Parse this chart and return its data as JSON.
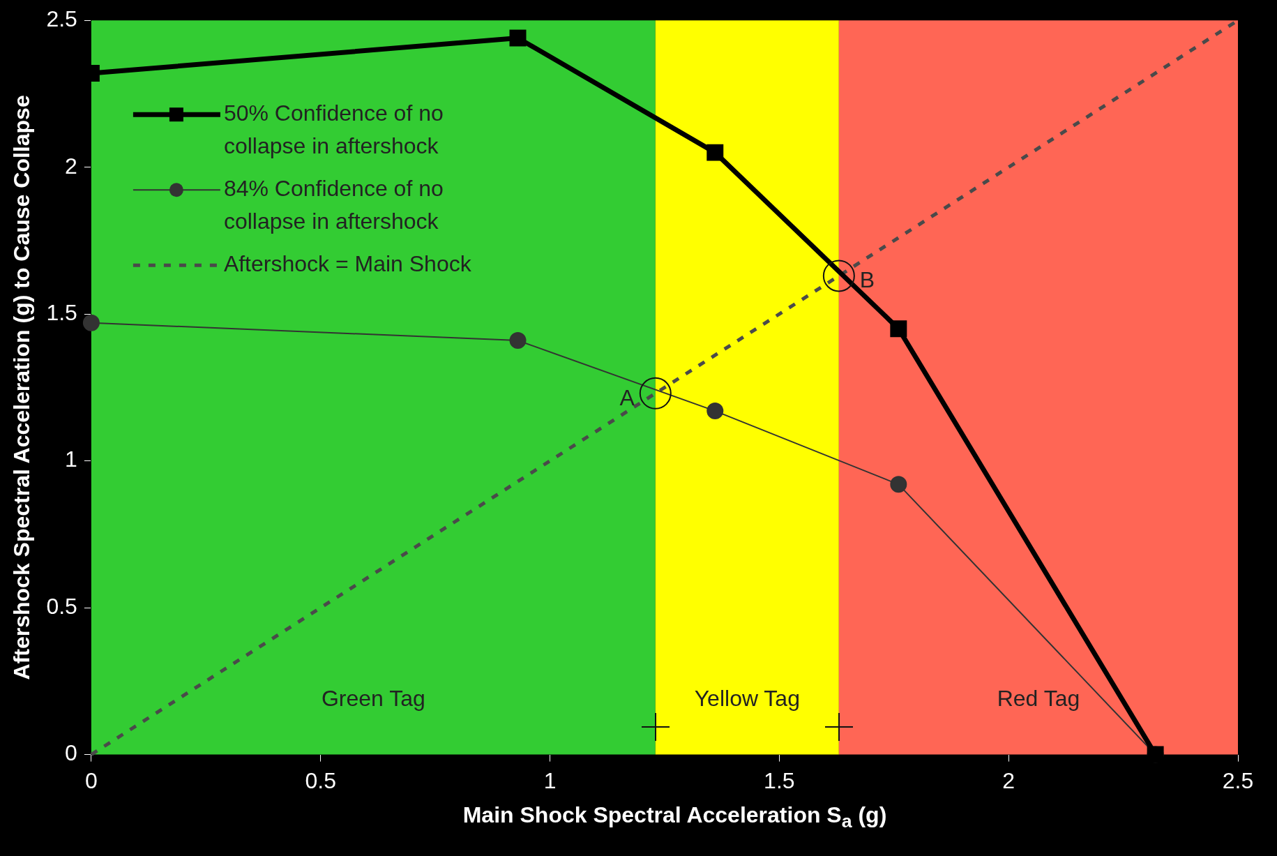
{
  "chart_data": {
    "type": "line",
    "xlabel": "Main Shock Spectral Acceleration S$_{a}$ (g)",
    "ylabel": "Aftershock Spectral Acceleration (g) to Cause Collapse",
    "series": [
      {
        "name": "50% Confidence of no collapse in aftershock",
        "color": "#000000",
        "x": [
          0,
          0.93,
          1.36,
          1.76,
          2.32
        ],
        "values": [
          2.32,
          2.44,
          2.05,
          1.45,
          0
        ],
        "marker": "square",
        "line_style": "solid"
      },
      {
        "name": "84% Confidence of no collapse in aftershock",
        "color": "#333333",
        "x": [
          0,
          0.93,
          1.36,
          1.76,
          2.32
        ],
        "values": [
          1.47,
          1.41,
          1.17,
          0.92,
          0
        ],
        "marker": "circle",
        "line_style": "solid"
      },
      {
        "name": "Aftershock = Main Shock",
        "color": "#4a4a4a",
        "x": [
          0,
          2.5
        ],
        "values": [
          0,
          2.5
        ],
        "marker": "none",
        "line_style": "dashed"
      }
    ],
    "bands": [
      {
        "axis": "x",
        "from": 0,
        "to": 1.23,
        "label": "Green Tag",
        "color": "#33cc33"
      },
      {
        "axis": "x",
        "from": 1.23,
        "to": 1.63,
        "label": "Yellow Tag",
        "color": "#ffff00"
      },
      {
        "axis": "x",
        "from": 1.63,
        "to": 2.5,
        "label": "Red Tag",
        "color": "#ff6655"
      }
    ],
    "annotations": [
      {
        "text": "A",
        "x": 1.23,
        "y": 1.23
      },
      {
        "text": "B",
        "x": 1.63,
        "y": 1.63
      }
    ],
    "xlim": [
      0,
      2.5
    ],
    "xticks": [
      0,
      0.5,
      1,
      1.5,
      2,
      2.5
    ],
    "ylim": [
      0,
      2.5
    ],
    "yticks": [
      0,
      0.5,
      1,
      1.5,
      2,
      2.5
    ],
    "grid": false,
    "legend": "top left"
  }
}
